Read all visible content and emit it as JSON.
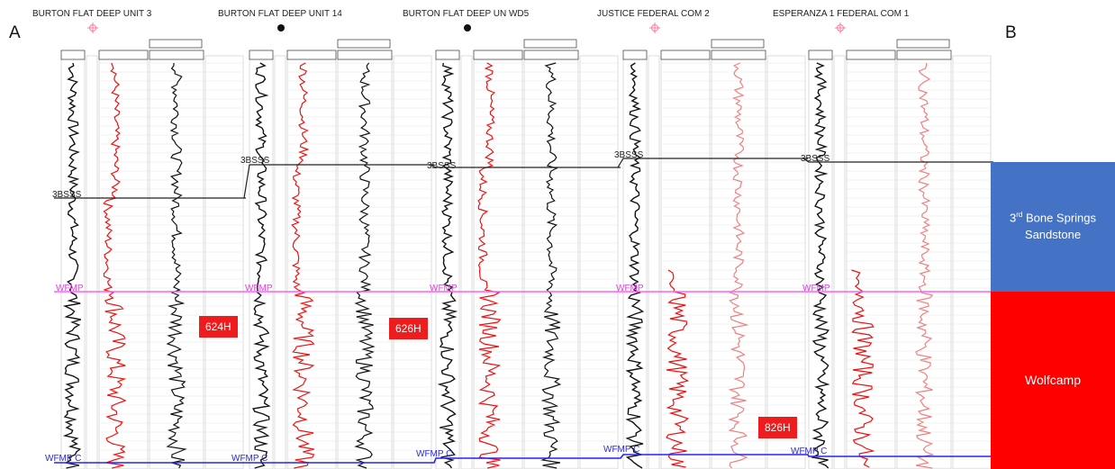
{
  "endpoints": {
    "left": "A",
    "right": "B"
  },
  "wells": [
    {
      "name": "BURTON FLAT DEEP UNIT 3",
      "symbol": "gas-star"
    },
    {
      "name": "BURTON FLAT DEEP UNIT 14",
      "symbol": "oil-dot"
    },
    {
      "name": "BURTON FLAT DEEP UN WD5",
      "symbol": "oil-dot"
    },
    {
      "name": "JUSTICE FEDERAL COM 2",
      "symbol": "gas-star"
    },
    {
      "name": "ESPERANZA 1 FEDERAL COM 1",
      "symbol": "gas-star"
    }
  ],
  "picks": {
    "top_3bsss": "3BSSS",
    "wfmp": "WFMP",
    "wfmp_c": "WFMP C"
  },
  "well_tags": [
    "624H",
    "626H",
    "826H"
  ],
  "zones": {
    "sandstone": {
      "ord": "3",
      "sup": "rd",
      "rest": " Bone Springs",
      "line2": "Sandstone"
    },
    "wolfcamp": "Wolfcamp"
  },
  "colors": {
    "sandstone": "#4472c4",
    "wolfcamp": "#ff0000",
    "wfmp_line": "#ff5cff",
    "wfmp_c_line": "#2323ff",
    "gr_curve": "#111111",
    "resistivity_curve": "#ee1111",
    "tag": "#ee1c1c"
  }
}
